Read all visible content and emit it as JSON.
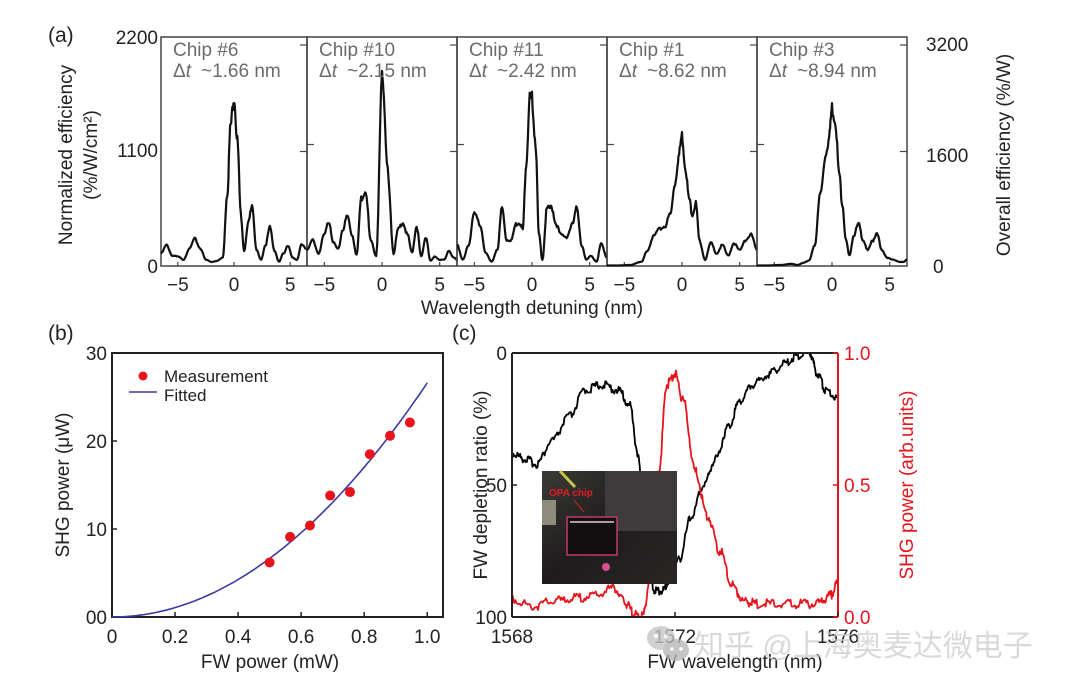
{
  "chart_data": [
    {
      "id": "a",
      "panel_label": "(a)",
      "type": "line",
      "title": "",
      "xlabel": "Wavelength detuning (nm)",
      "ylabel_left": "Normalized efficiency",
      "ylabel_left_units": "(%/W/cm²)",
      "ylabel_right": "Overall efficiency (%/W)",
      "xlim": [
        -6.5,
        6.5
      ],
      "ylim_left": [
        0,
        2200
      ],
      "ylim_right": [
        0,
        3200
      ],
      "yticks_left": [
        "0",
        "1100",
        "2200"
      ],
      "yticks_right": [
        "0",
        "1600",
        "3200"
      ],
      "xticks": [
        "−5",
        "0",
        "5"
      ],
      "xtick_values": [
        -5,
        0,
        5
      ],
      "line_color": "#111111",
      "panels": [
        {
          "chip": "Chip #6",
          "delta_label": "Δt",
          "delta_value": "~1.66 nm",
          "x": [
            -6.5,
            -6.0,
            -5.5,
            -5.0,
            -4.5,
            -4.0,
            -3.5,
            -3.0,
            -2.5,
            -2.0,
            -1.5,
            -1.0,
            -0.6,
            -0.3,
            0.0,
            0.3,
            0.6,
            0.9,
            1.3,
            1.6,
            2.0,
            2.4,
            2.8,
            3.2,
            3.6,
            4.0,
            4.4,
            4.8,
            5.2,
            5.6,
            6.0,
            6.5
          ],
          "y": [
            120,
            200,
            100,
            90,
            60,
            160,
            260,
            170,
            60,
            40,
            50,
            80,
            700,
            1350,
            1640,
            1200,
            500,
            150,
            420,
            600,
            150,
            60,
            200,
            370,
            150,
            40,
            120,
            200,
            80,
            60,
            200,
            160
          ]
        },
        {
          "chip": "Chip #10",
          "delta_label": "Δt",
          "delta_value": "~2.15 nm",
          "x": [
            -6.5,
            -6.0,
            -5.5,
            -5.0,
            -4.6,
            -4.2,
            -3.8,
            -3.4,
            -3.0,
            -2.6,
            -2.2,
            -1.8,
            -1.4,
            -1.0,
            -0.5,
            0.0,
            0.5,
            1.0,
            1.4,
            1.8,
            2.2,
            2.6,
            3.0,
            3.4,
            3.8,
            4.2,
            4.6,
            5.0,
            5.4,
            5.8,
            6.2,
            6.5
          ],
          "y": [
            150,
            250,
            120,
            300,
            430,
            220,
            160,
            350,
            480,
            300,
            110,
            650,
            730,
            250,
            100,
            1800,
            900,
            120,
            350,
            420,
            300,
            130,
            380,
            90,
            280,
            50,
            90,
            60,
            60,
            150,
            80,
            60
          ]
        },
        {
          "chip": "Chip #11",
          "delta_label": "Δt",
          "delta_value": "~2.42 nm",
          "x": [
            -6.5,
            -6.0,
            -5.5,
            -5.0,
            -4.5,
            -4.0,
            -3.5,
            -3.0,
            -2.6,
            -2.2,
            -1.8,
            -1.4,
            -1.1,
            -0.8,
            -0.5,
            -0.2,
            0.0,
            0.3,
            0.6,
            0.9,
            1.3,
            1.7,
            2.1,
            2.5,
            3.0,
            3.5,
            3.9,
            4.3,
            4.7,
            5.1,
            5.6,
            6.0,
            6.5
          ],
          "y": [
            200,
            60,
            200,
            500,
            400,
            120,
            40,
            160,
            560,
            250,
            250,
            400,
            420,
            350,
            1000,
            1600,
            1600,
            1200,
            300,
            60,
            550,
            560,
            400,
            300,
            280,
            400,
            560,
            200,
            60,
            100,
            40,
            220,
            80
          ]
        },
        {
          "chip": "Chip #1",
          "delta_label": "Δt",
          "delta_value": "~8.62 nm",
          "x": [
            -6.5,
            -5.5,
            -4.5,
            -3.5,
            -3.0,
            -2.5,
            -2.0,
            -1.5,
            -1.0,
            -0.6,
            -0.3,
            0.0,
            0.3,
            0.6,
            0.9,
            1.2,
            1.5,
            2.0,
            2.5,
            3.0,
            3.5,
            4.0,
            4.5,
            5.0,
            5.5,
            6.0,
            6.5
          ],
          "y": [
            5,
            5,
            10,
            40,
            150,
            280,
            350,
            380,
            500,
            800,
            1050,
            1250,
            950,
            650,
            500,
            600,
            250,
            60,
            220,
            120,
            200,
            100,
            220,
            150,
            250,
            300,
            150
          ]
        },
        {
          "chip": "Chip #3",
          "delta_label": "Δt",
          "delta_value": "~8.94 nm",
          "x": [
            -6.5,
            -5.5,
            -4.5,
            -3.5,
            -3.0,
            -2.5,
            -2.0,
            -1.5,
            -1.0,
            -0.5,
            -0.2,
            0.0,
            0.3,
            0.6,
            0.9,
            1.2,
            1.5,
            1.9,
            2.3,
            2.7,
            3.1,
            3.5,
            3.9,
            4.3,
            4.8,
            5.3,
            5.8,
            6.2,
            6.5
          ],
          "y": [
            5,
            5,
            10,
            20,
            10,
            30,
            50,
            200,
            700,
            1100,
            1300,
            1520,
            1400,
            900,
            600,
            250,
            100,
            300,
            400,
            250,
            150,
            240,
            320,
            150,
            80,
            60,
            40,
            40,
            60
          ]
        }
      ]
    },
    {
      "id": "b",
      "panel_label": "(b)",
      "type": "scatter",
      "title": "",
      "xlabel": "FW power (mW)",
      "ylabel": "SHG power (μW)",
      "xlim": [
        0,
        1.05
      ],
      "ylim": [
        0,
        30
      ],
      "xticks": [
        "0",
        "0.2",
        "0.4",
        "0.6",
        "0.8",
        "1.0"
      ],
      "xtick_values": [
        0,
        0.2,
        0.4,
        0.6,
        0.8,
        1.0
      ],
      "yticks": [
        "00",
        "10",
        "20",
        "30"
      ],
      "ytick_values": [
        0,
        10,
        20,
        30
      ],
      "legend": {
        "position": "top-left",
        "entries": [
          "Measurement",
          "Fitted"
        ]
      },
      "series": [
        {
          "name": "Measurement",
          "kind": "scatter",
          "color": "#e8141c",
          "x": [
            0.5,
            0.565,
            0.628,
            0.692,
            0.755,
            0.818,
            0.882,
            0.945
          ],
          "y": [
            6.2,
            9.1,
            10.4,
            13.8,
            14.2,
            18.5,
            20.6,
            22.1
          ]
        },
        {
          "name": "Fitted",
          "kind": "line",
          "color": "#3b3ba0",
          "equation": "y = 26.6 * x^2",
          "coefficient": 26.6,
          "x_range": [
            0,
            1.0
          ]
        }
      ]
    },
    {
      "id": "c",
      "panel_label": "(c)",
      "type": "line",
      "title": "",
      "xlabel": "FW wavelength (nm)",
      "ylabel_left": "FW depletion ratio (%)",
      "ylabel_right": "SHG power (arb.units)",
      "xlim": [
        1568,
        1576
      ],
      "ylim_left": [
        0,
        100
      ],
      "ylim_left_inverted": true,
      "ylim_right": [
        0,
        1.0
      ],
      "xticks": [
        "1568",
        "1572",
        "1576"
      ],
      "xtick_values": [
        1568,
        1572,
        1576
      ],
      "yticks_left": [
        "0",
        "50",
        "100"
      ],
      "yticks_right": [
        "0.0",
        "0.5",
        "1.0"
      ],
      "inset_label": "OPA chip",
      "series": [
        {
          "name": "FW depletion ratio",
          "axis": "left",
          "color": "#000000",
          "x": [
            1568.0,
            1568.3,
            1568.6,
            1569.0,
            1569.4,
            1569.8,
            1570.2,
            1570.6,
            1570.9,
            1571.1,
            1571.3,
            1571.5,
            1571.7,
            1571.9,
            1572.1,
            1572.4,
            1572.7,
            1573.0,
            1573.3,
            1573.6,
            1573.9,
            1574.3,
            1574.7,
            1575.0,
            1575.3,
            1575.5,
            1575.7,
            1576.0
          ],
          "y": [
            38,
            40,
            42,
            33,
            24,
            14,
            12,
            14,
            20,
            40,
            72,
            90,
            90,
            85,
            78,
            62,
            50,
            40,
            28,
            18,
            12,
            8,
            4,
            1,
            0,
            8,
            14,
            17
          ]
        },
        {
          "name": "SHG power",
          "axis": "right",
          "color": "#e8141c",
          "x": [
            1568.0,
            1568.5,
            1569.0,
            1569.5,
            1570.0,
            1570.5,
            1570.8,
            1571.0,
            1571.2,
            1571.4,
            1571.6,
            1571.8,
            1572.0,
            1572.2,
            1572.5,
            1572.8,
            1573.1,
            1573.4,
            1573.7,
            1574.0,
            1574.5,
            1575.0,
            1575.5,
            1575.8,
            1576.0
          ],
          "y": [
            0.07,
            0.04,
            0.06,
            0.07,
            0.08,
            0.11,
            0.05,
            0.01,
            0.0,
            0.15,
            0.55,
            0.88,
            0.92,
            0.82,
            0.55,
            0.38,
            0.25,
            0.12,
            0.06,
            0.05,
            0.05,
            0.05,
            0.05,
            0.08,
            0.13
          ]
        }
      ]
    }
  ],
  "watermark": {
    "text": "知乎 @上海奥麦达微电子",
    "icon": "wechat-icon"
  }
}
